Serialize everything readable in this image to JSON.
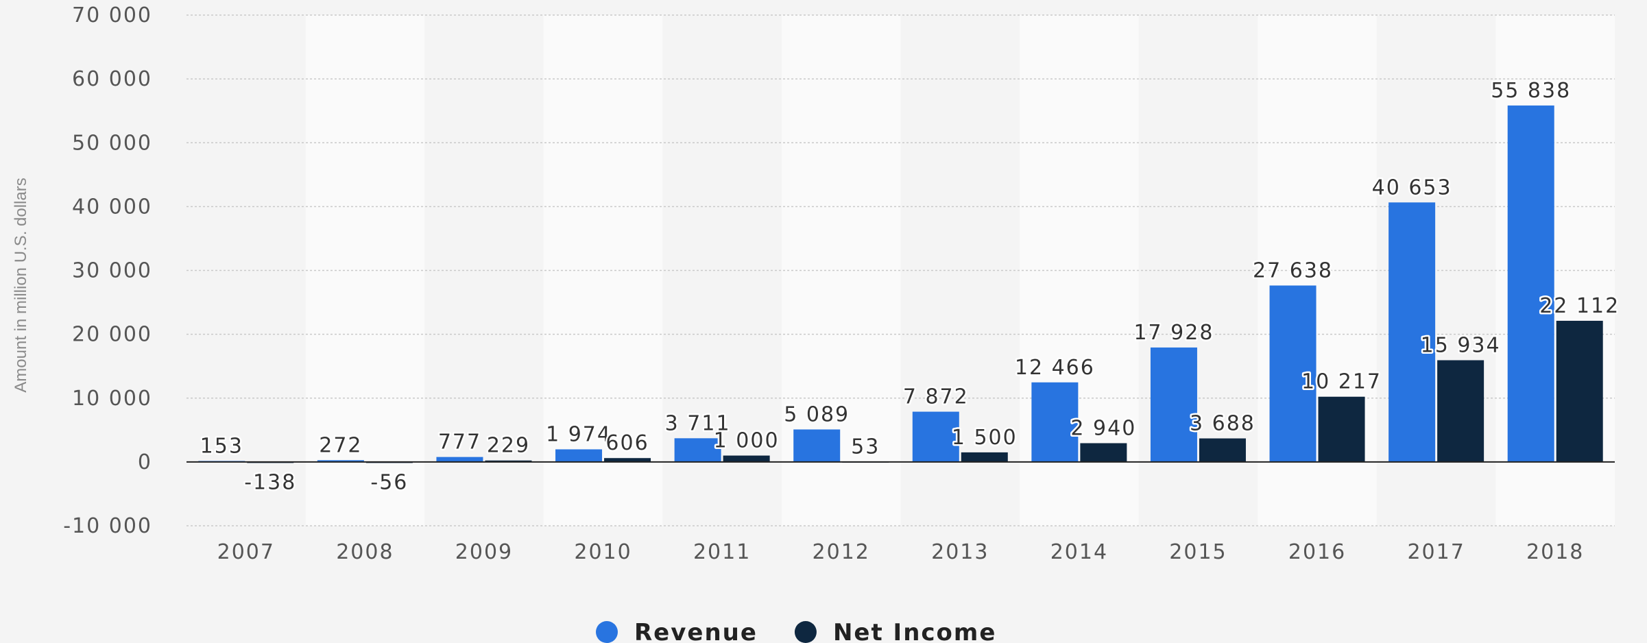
{
  "chart_data": {
    "type": "bar",
    "categories": [
      "2007",
      "2008",
      "2009",
      "2010",
      "2011",
      "2012",
      "2013",
      "2014",
      "2015",
      "2016",
      "2017",
      "2018"
    ],
    "series": [
      {
        "name": "Revenue",
        "color": "#2874e0",
        "values": [
          153,
          272,
          777,
          1974,
          3711,
          5089,
          7872,
          12466,
          17928,
          27638,
          40653,
          55838
        ],
        "labels": [
          "153",
          "272",
          "777",
          "1 974",
          "3 711",
          "5 089",
          "7 872",
          "12 466",
          "17 928",
          "27 638",
          "40 653",
          "55 838"
        ]
      },
      {
        "name": "Net Income",
        "color": "#0e2740",
        "values": [
          -138,
          -56,
          229,
          606,
          1000,
          53,
          1500,
          2940,
          3688,
          10217,
          15934,
          22112
        ],
        "labels": [
          "-138",
          "-56",
          "229",
          "606",
          "1 000",
          "53",
          "1 500",
          "2 940",
          "3 688",
          "10 217",
          "15 934",
          "22 112"
        ]
      }
    ],
    "ylabel": "Amount in million U.S. dollars",
    "ylim": [
      -10000,
      70000
    ],
    "yticks": [
      70000,
      60000,
      50000,
      40000,
      30000,
      20000,
      10000,
      0,
      -10000
    ],
    "ytick_labels": [
      "70 000",
      "60 000",
      "50 000",
      "40 000",
      "30 000",
      "20 000",
      "10 000",
      "0",
      "-10 000"
    ],
    "grid": true,
    "legend": "bottom-center"
  }
}
